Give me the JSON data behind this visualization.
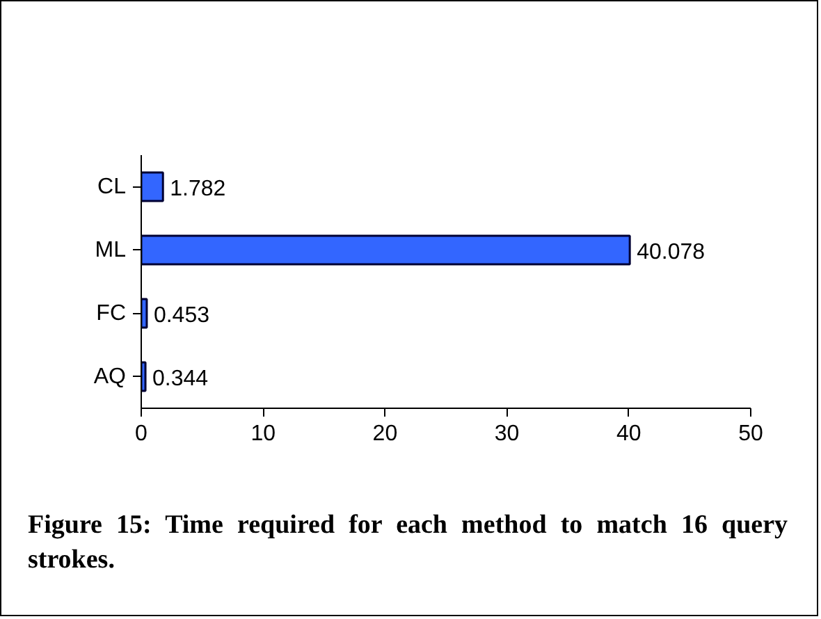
{
  "chart_data": {
    "type": "bar",
    "orientation": "horizontal",
    "categories": [
      "CL",
      "ML",
      "FC",
      "AQ"
    ],
    "values": [
      1.782,
      40.078,
      0.453,
      0.344
    ],
    "color": "#3366ff",
    "xlim": [
      0,
      50
    ],
    "xticks": [
      0,
      10,
      20,
      30,
      40,
      50
    ],
    "data_labels": true,
    "grid": false,
    "annotations": [
      "Figure 15: Time required for each method to match 16 query strokes."
    ]
  }
}
